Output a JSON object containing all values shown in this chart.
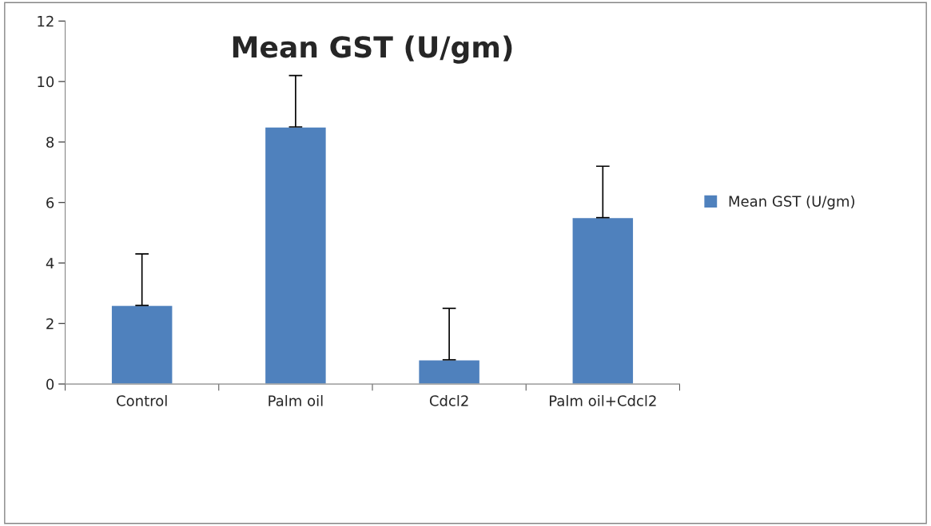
{
  "chart_data": {
    "type": "bar",
    "title": "Mean GST (U/gm)",
    "categories": [
      "Control",
      "Palm oil",
      "Cdcl2",
      "Palm oil+Cdcl2"
    ],
    "series": [
      {
        "name": "Mean GST (U/gm)",
        "color": "#4f81bd",
        "values": [
          2.6,
          8.5,
          0.8,
          5.5
        ],
        "errors": [
          [
            2.6,
            4.3
          ],
          [
            8.5,
            10.2
          ],
          [
            0.8,
            2.5
          ],
          [
            5.5,
            7.2
          ]
        ]
      }
    ],
    "ylim": [
      0,
      12
    ],
    "yticks": [
      0,
      2,
      4,
      6,
      8,
      10,
      12
    ],
    "grid": false,
    "legend": "right"
  }
}
